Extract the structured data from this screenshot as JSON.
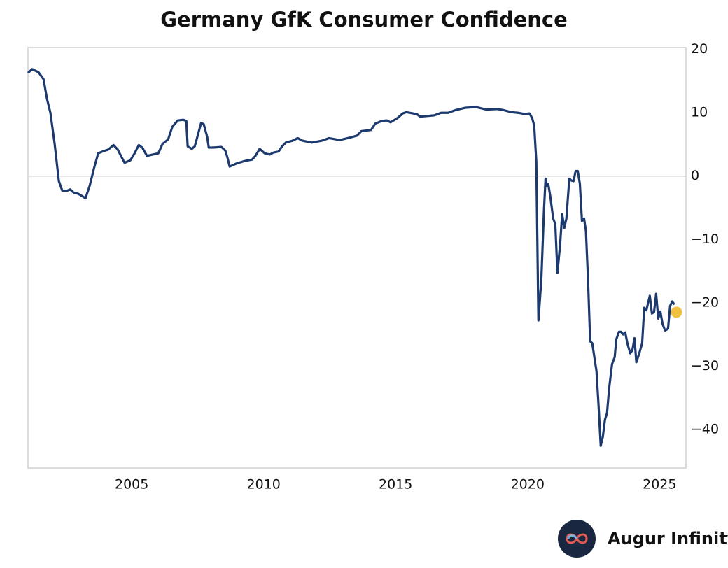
{
  "chart_data": {
    "type": "line",
    "title": "Germany GfK Consumer Confidence",
    "x": [
      2001.07,
      2001.23,
      2001.47,
      2001.66,
      2001.79,
      2001.92,
      2002.08,
      2002.24,
      2002.37,
      2002.56,
      2002.67,
      2002.8,
      2002.98,
      2003.14,
      2003.25,
      2003.41,
      2003.57,
      2003.73,
      2003.91,
      2004.12,
      2004.31,
      2004.47,
      2004.63,
      2004.73,
      2004.95,
      2005.11,
      2005.27,
      2005.4,
      2005.58,
      2005.8,
      2006.01,
      2006.17,
      2006.38,
      2006.54,
      2006.75,
      2006.96,
      2007.07,
      2007.12,
      2007.28,
      2007.39,
      2007.52,
      2007.63,
      2007.73,
      2007.86,
      2007.92,
      2008.08,
      2008.4,
      2008.55,
      2008.63,
      2008.71,
      2008.98,
      2009.3,
      2009.56,
      2009.69,
      2009.85,
      2010.04,
      2010.23,
      2010.36,
      2010.57,
      2010.7,
      2010.84,
      2011.1,
      2011.29,
      2011.47,
      2011.82,
      2012.21,
      2012.48,
      2012.88,
      2013.28,
      2013.54,
      2013.7,
      2014.07,
      2014.23,
      2014.47,
      2014.66,
      2014.81,
      2015.08,
      2015.27,
      2015.4,
      2015.8,
      2015.93,
      2016.46,
      2016.72,
      2016.99,
      2017.25,
      2017.65,
      2018.05,
      2018.45,
      2018.85,
      2019.11,
      2019.38,
      2019.64,
      2019.91,
      2020.07,
      2020.17,
      2020.25,
      2020.33,
      2020.41,
      2020.52,
      2020.62,
      2020.68,
      2020.73,
      2020.78,
      2020.86,
      2020.97,
      2021.05,
      2021.13,
      2021.23,
      2021.31,
      2021.39,
      2021.47,
      2021.58,
      2021.66,
      2021.74,
      2021.82,
      2021.9,
      2021.98,
      2022.06,
      2022.14,
      2022.21,
      2022.29,
      2022.37,
      2022.45,
      2022.53,
      2022.61,
      2022.69,
      2022.77,
      2022.85,
      2022.93,
      2023.01,
      2023.09,
      2023.2,
      2023.3,
      2023.36,
      2023.46,
      2023.54,
      2023.62,
      2023.7,
      2023.78,
      2023.89,
      2023.97,
      2024.05,
      2024.12,
      2024.23,
      2024.34,
      2024.42,
      2024.5,
      2024.63,
      2024.71,
      2024.79,
      2024.87,
      2024.95,
      2025.03,
      2025.11,
      2025.21,
      2025.32,
      2025.4,
      2025.48,
      2025.56
    ],
    "series": [
      {
        "name": "Germany GfK Consumer Confidence",
        "color": "#1c3a6e",
        "values": [
          16.3,
          16.9,
          16.4,
          15.3,
          12.2,
          10.0,
          5.1,
          -0.8,
          -2.3,
          -2.3,
          -2.1,
          -2.6,
          -2.8,
          -3.2,
          -3.5,
          -1.5,
          1.2,
          3.6,
          3.9,
          4.2,
          4.9,
          4.2,
          2.9,
          2.1,
          2.5,
          3.6,
          4.9,
          4.5,
          3.2,
          3.4,
          3.6,
          5.1,
          5.8,
          7.8,
          8.8,
          8.9,
          8.7,
          4.7,
          4.3,
          4.7,
          6.7,
          8.4,
          8.2,
          6.2,
          4.5,
          4.5,
          4.6,
          4.0,
          2.9,
          1.5,
          2.0,
          2.4,
          2.6,
          3.2,
          4.3,
          3.6,
          3.4,
          3.7,
          3.9,
          4.7,
          5.3,
          5.6,
          6.0,
          5.6,
          5.3,
          5.6,
          6.0,
          5.7,
          6.1,
          6.4,
          7.1,
          7.3,
          8.3,
          8.7,
          8.8,
          8.5,
          9.2,
          9.9,
          10.1,
          9.8,
          9.4,
          9.6,
          10.0,
          10.0,
          10.4,
          10.8,
          10.9,
          10.5,
          10.6,
          10.4,
          10.1,
          10.0,
          9.8,
          9.9,
          9.2,
          8.0,
          2.3,
          -22.8,
          -16.4,
          -5.4,
          -0.4,
          -1.5,
          -1.2,
          -3.2,
          -6.7,
          -7.6,
          -15.3,
          -10.9,
          -6.0,
          -8.2,
          -6.7,
          -0.4,
          -0.7,
          -0.8,
          0.8,
          0.8,
          -1.2,
          -7.1,
          -6.7,
          -8.7,
          -16.4,
          -26.1,
          -26.4,
          -28.6,
          -30.8,
          -36.3,
          -42.6,
          -41.2,
          -38.5,
          -37.4,
          -33.5,
          -29.7,
          -28.6,
          -25.8,
          -24.6,
          -24.6,
          -25.0,
          -24.7,
          -26.4,
          -28.0,
          -27.5,
          -25.6,
          -29.4,
          -28.0,
          -26.4,
          -20.8,
          -21.2,
          -18.9,
          -21.7,
          -21.5,
          -18.6,
          -22.5,
          -21.4,
          -23.3,
          -24.4,
          -24.1,
          -20.5,
          -19.8,
          -20.3
        ]
      }
    ],
    "last_point": {
      "x": 2025.64,
      "value": -21.5,
      "color": "#f0c040"
    },
    "xlim": [
      2001.07,
      2026.0
    ],
    "xticks": [
      2005,
      2010,
      2015,
      2020,
      2025
    ],
    "ylim": [
      -46.1,
      20.3
    ],
    "yticks": [
      {
        "value": -40,
        "label": "−40"
      },
      {
        "value": -30,
        "label": "−30"
      },
      {
        "value": -20,
        "label": "−20"
      },
      {
        "value": -10,
        "label": "−10"
      },
      0,
      10,
      20
    ],
    "zero_line": true,
    "y_axis_side": "right",
    "branding": "Augur Infinity"
  }
}
